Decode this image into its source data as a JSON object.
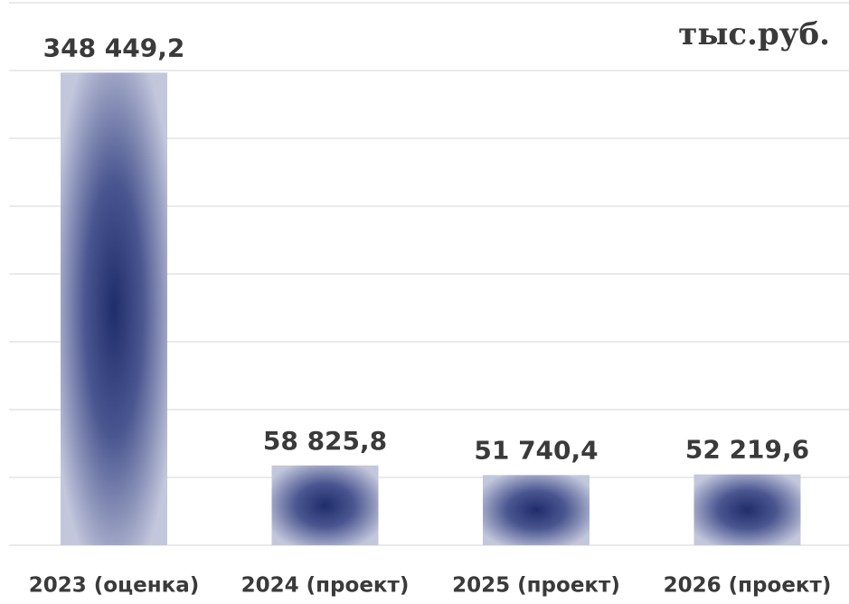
{
  "chart_data": {
    "type": "bar",
    "unit_label": "тыс.руб.",
    "categories": [
      "2023 (оценка)",
      "2024 (проект)",
      "2025 (проект)",
      "2026 (проект)"
    ],
    "values": [
      348449.2,
      58825.8,
      51740.4,
      52219.6
    ],
    "value_labels": [
      "348 449,2",
      "58 825,8",
      "51 740,4",
      "52 219,6"
    ],
    "color": "#1f2d6b",
    "ylim": [
      0,
      400000
    ],
    "yticks": [
      0,
      50000,
      100000,
      150000,
      200000,
      250000,
      300000,
      350000,
      400000
    ],
    "grid": true
  }
}
